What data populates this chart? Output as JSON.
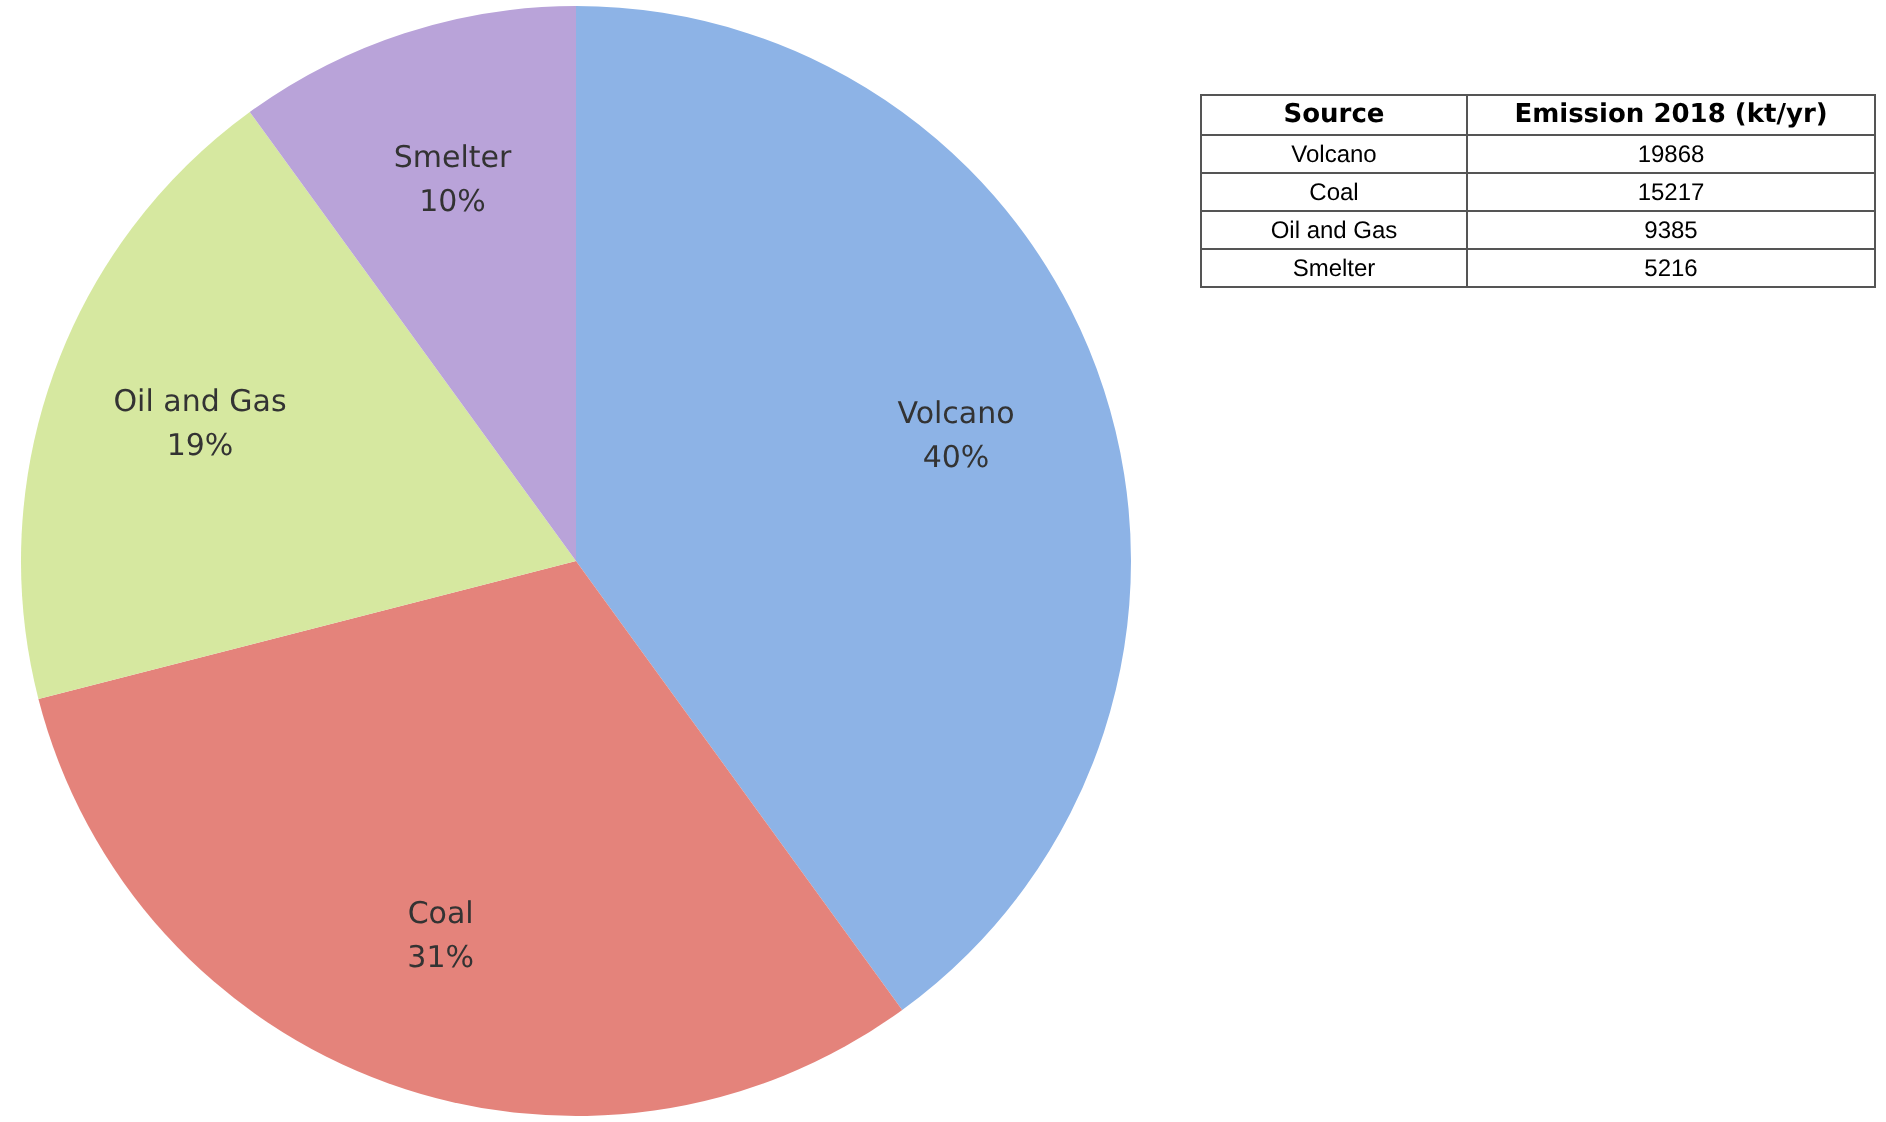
{
  "chart_data": [
    {
      "type": "pie",
      "categories": [
        "Volcano",
        "Coal",
        "Oil and Gas",
        "Smelter"
      ],
      "values": [
        40,
        31,
        19,
        10
      ],
      "colors": [
        "#8db3e6",
        "#e4837b",
        "#d6e8a0",
        "#b9a3d9"
      ],
      "value_labels": [
        "40%",
        "31%",
        "19%",
        "10%"
      ]
    },
    {
      "type": "other",
      "annotations": [
        "Source",
        "Emission 2018 (kt/yr)"
      ],
      "categories": [
        "Volcano",
        "Coal",
        "Oil and Gas",
        "Smelter"
      ],
      "values": [
        19868,
        15217,
        9385,
        5216
      ],
      "data_labels": true
    }
  ]
}
